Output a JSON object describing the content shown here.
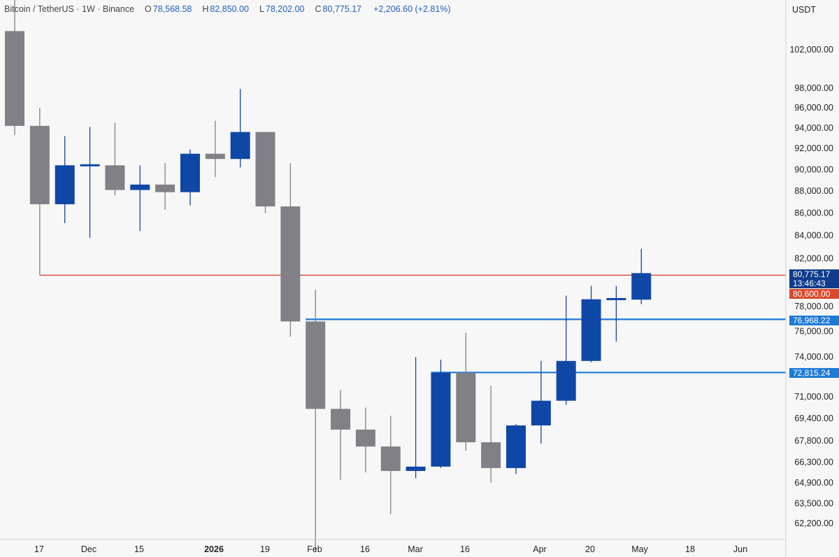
{
  "header": {
    "symbol": "Bitcoin / TetherUS",
    "interval": "1W",
    "exchange": "Binance",
    "open_label": "O",
    "open": "78,568.58",
    "high_label": "H",
    "high": "82,850.00",
    "low_label": "L",
    "low": "78,202.00",
    "close_label": "C",
    "close": "80,775.17",
    "change": "+2,206.60 (+2.81%)"
  },
  "chart_data": {
    "type": "candlestick",
    "currency": "USDT",
    "interval": "1W",
    "x_tick_labels": [
      "17",
      "Dec",
      "15",
      "2026",
      "19",
      "Feb",
      "16",
      "Mar",
      "16",
      "Apr",
      "20",
      "May",
      "18",
      "Jun"
    ],
    "y_tick_labels": [
      "102,000.00",
      "98,000.00",
      "96,000.00",
      "94,000.00",
      "92,000.00",
      "90,000.00",
      "88,000.00",
      "86,000.00",
      "84,000.00",
      "82,000.00",
      "78,000.00",
      "76,000.00",
      "74,000.00",
      "71,000.00",
      "69,400.00",
      "67,800.00",
      "66,300.00",
      "64,900.00",
      "63,500.00",
      "62,200.00"
    ],
    "y_ticks": [
      102000,
      98000,
      96000,
      94000,
      92000,
      90000,
      88000,
      86000,
      84000,
      82000,
      78000,
      76000,
      74000,
      71000,
      69400,
      67800,
      66300,
      64900,
      63500,
      62200
    ],
    "scale": "log",
    "candles": [
      {
        "o": 104000,
        "h": 107500,
        "l": 93300,
        "c": 94200
      },
      {
        "o": 94200,
        "h": 96000,
        "l": 80600,
        "c": 86800
      },
      {
        "o": 86800,
        "h": 93200,
        "l": 85100,
        "c": 90400
      },
      {
        "o": 90400,
        "h": 94100,
        "l": 83800,
        "c": 90500
      },
      {
        "o": 90400,
        "h": 94500,
        "l": 87600,
        "c": 88100
      },
      {
        "o": 88100,
        "h": 90400,
        "l": 84400,
        "c": 88600
      },
      {
        "o": 88600,
        "h": 90600,
        "l": 86300,
        "c": 87900
      },
      {
        "o": 87900,
        "h": 91900,
        "l": 86700,
        "c": 91500
      },
      {
        "o": 91500,
        "h": 94700,
        "l": 89300,
        "c": 91000
      },
      {
        "o": 91000,
        "h": 97900,
        "l": 90200,
        "c": 93600
      },
      {
        "o": 93600,
        "h": 93600,
        "l": 86000,
        "c": 86600
      },
      {
        "o": 86600,
        "h": 90600,
        "l": 75600,
        "c": 76800
      },
      {
        "o": 76800,
        "h": 79400,
        "l": 60400,
        "c": 70100
      },
      {
        "o": 70100,
        "h": 71500,
        "l": 65100,
        "c": 68600
      },
      {
        "o": 68600,
        "h": 70200,
        "l": 65600,
        "c": 67400
      },
      {
        "o": 67400,
        "h": 69600,
        "l": 62800,
        "c": 65700
      },
      {
        "o": 65700,
        "h": 74000,
        "l": 65200,
        "c": 66000
      },
      {
        "o": 66000,
        "h": 73800,
        "l": 65900,
        "c": 72800
      },
      {
        "o": 72800,
        "h": 75900,
        "l": 67100,
        "c": 67700
      },
      {
        "o": 67700,
        "h": 71800,
        "l": 64900,
        "c": 65900
      },
      {
        "o": 65900,
        "h": 69000,
        "l": 65500,
        "c": 68900
      },
      {
        "o": 68900,
        "h": 73700,
        "l": 67600,
        "c": 70700
      },
      {
        "o": 70700,
        "h": 78900,
        "l": 70400,
        "c": 73700
      },
      {
        "o": 73700,
        "h": 79700,
        "l": 73600,
        "c": 78600
      },
      {
        "o": 78600,
        "h": 79700,
        "l": 75200,
        "c": 78700
      },
      {
        "o": 78568.58,
        "h": 82850,
        "l": 78202,
        "c": 80775.17
      }
    ],
    "horizontal_lines": [
      {
        "price": 80600,
        "color": "#d94a2c",
        "label": "80,600.00"
      },
      {
        "price": 76968.22,
        "color": "#1f7ad6",
        "label": "76,968.22"
      },
      {
        "price": 72815.24,
        "color": "#1f7ad6",
        "label": "72,815.24"
      }
    ],
    "current_price": {
      "label": "80,775.17",
      "countdown": "13:46:43"
    },
    "colors": {
      "up": "#0f47a7",
      "down": "#808086",
      "background": "#f7f7f7",
      "red_line": "#d94a2c",
      "blue_line": "#1f7ad6",
      "price_tag": "#0f3c8c"
    },
    "grid": false
  }
}
